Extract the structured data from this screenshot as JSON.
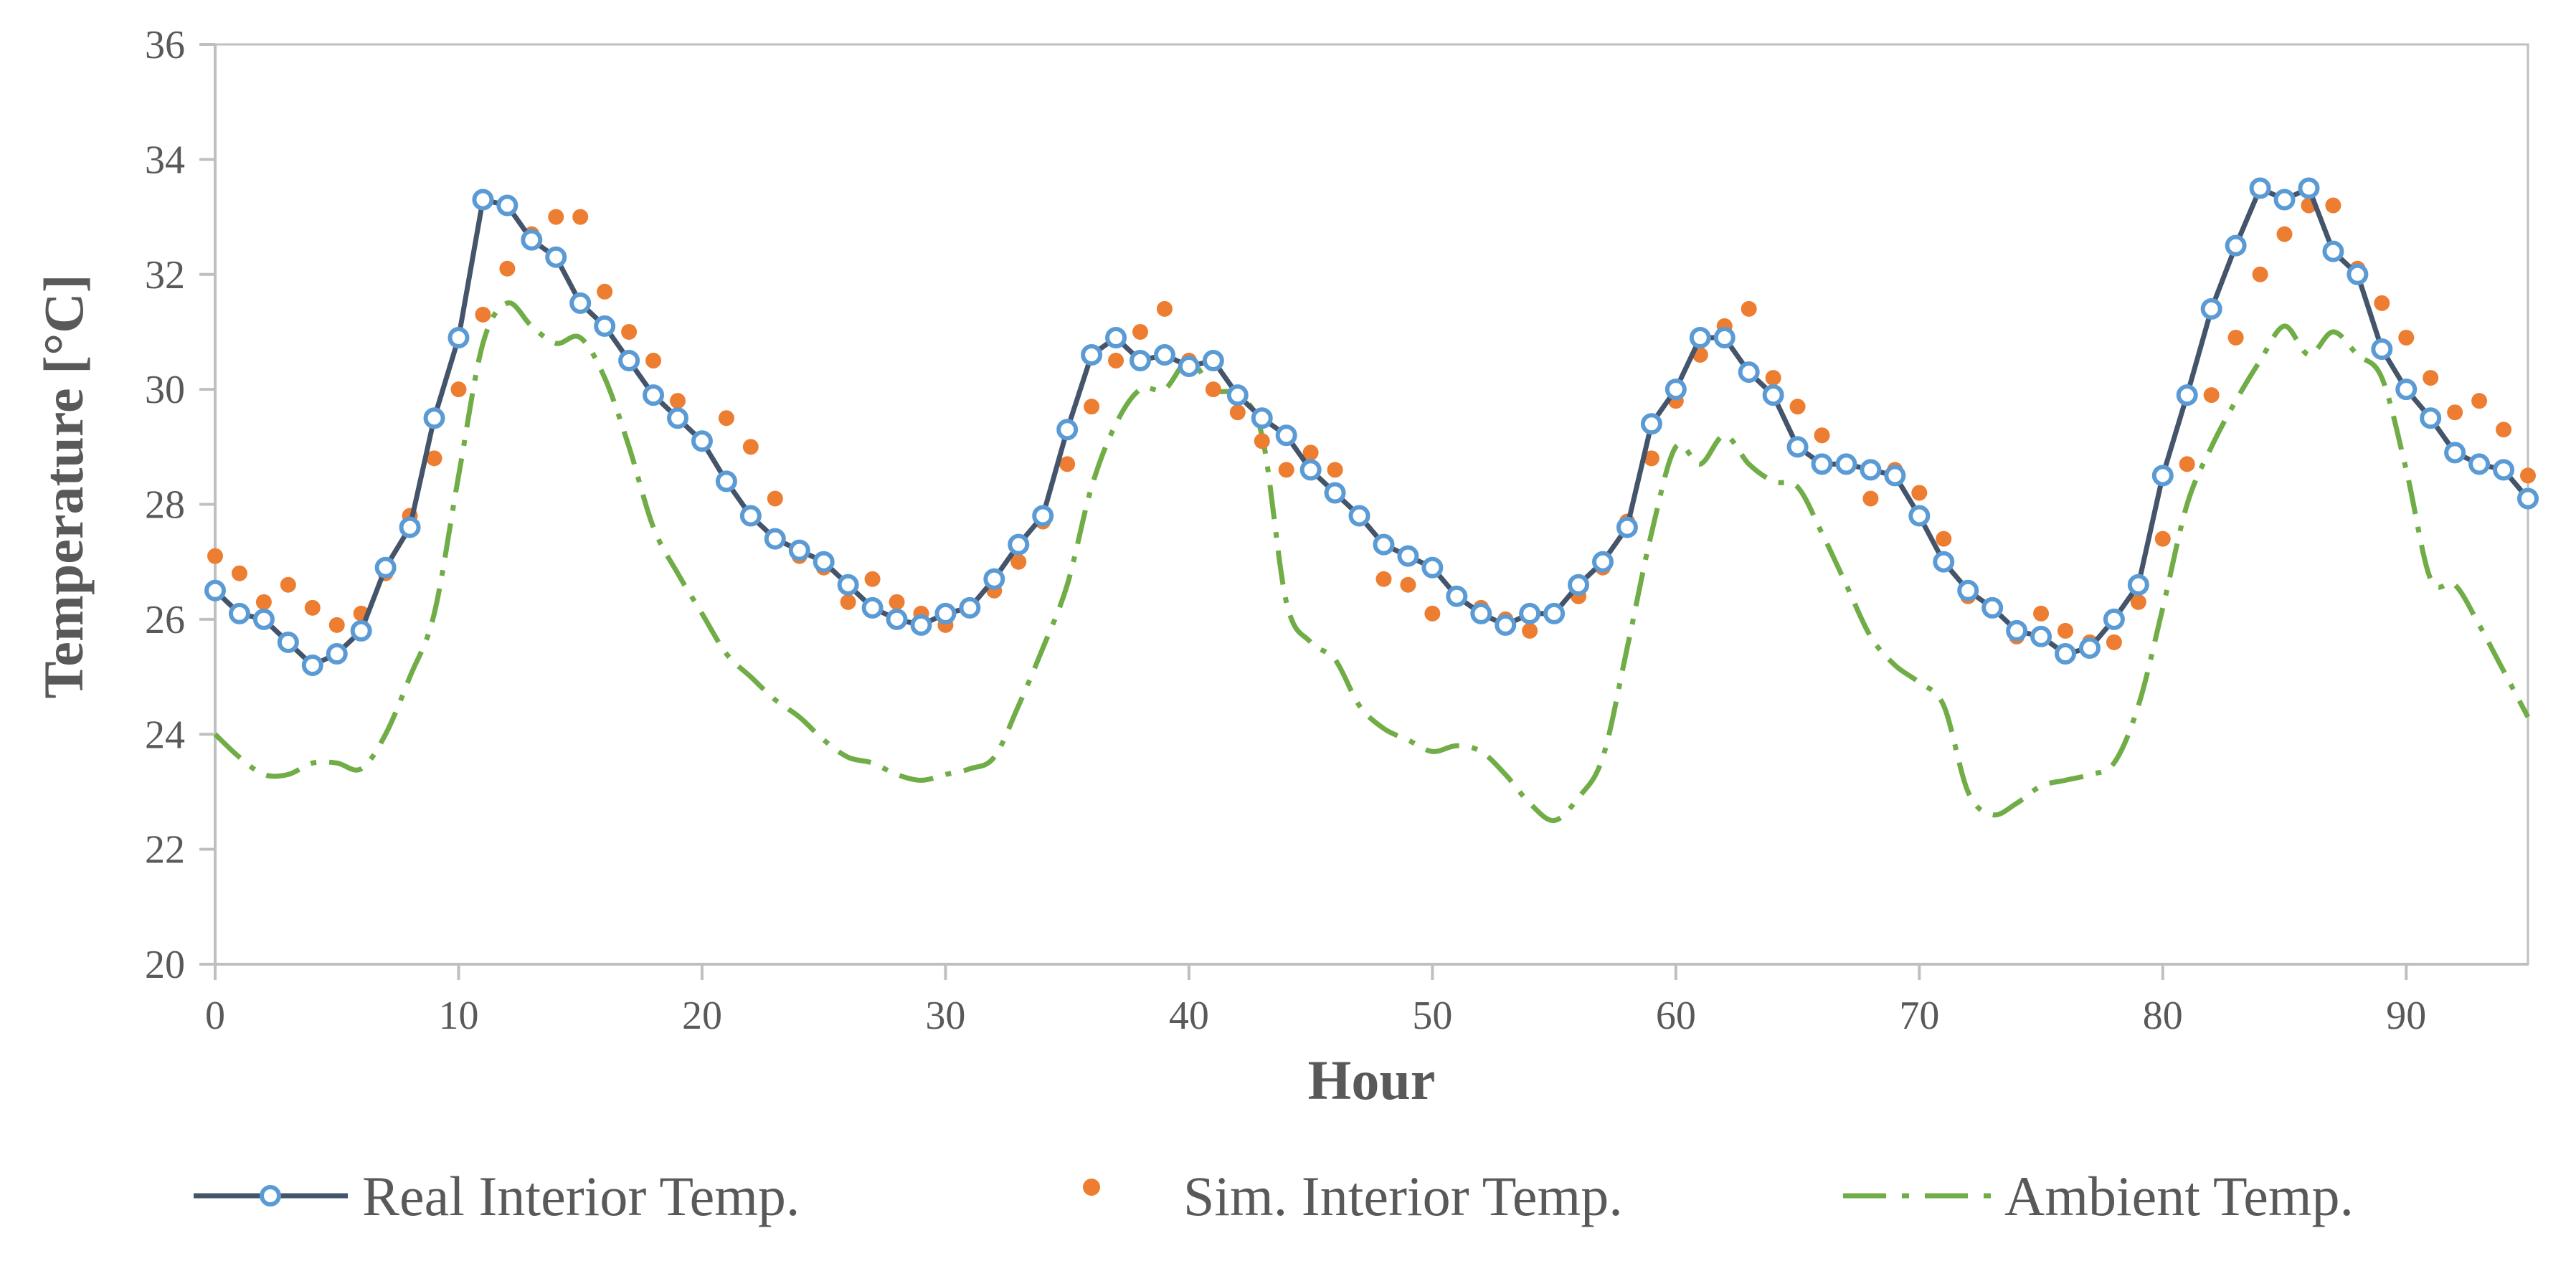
{
  "chart_data": {
    "type": "line",
    "title": "",
    "xlabel": "Hour",
    "ylabel": "Temperature [°C]",
    "xlim": [
      0,
      95
    ],
    "ylim": [
      20,
      36
    ],
    "xticks": [
      0,
      10,
      20,
      30,
      40,
      50,
      60,
      70,
      80,
      90
    ],
    "yticks": [
      20,
      22,
      24,
      26,
      28,
      30,
      32,
      34,
      36
    ],
    "grid": false,
    "legend_position": "bottom",
    "colors": {
      "real": "#44546A",
      "real_marker": "#5B9BD5",
      "sim": "#ED7D31",
      "ambient": "#70AD47",
      "axis": "#BFBFBF",
      "text": "#595959"
    },
    "series": [
      {
        "name": "Real Interior Temp.",
        "style": "line-marker",
        "values": [
          26.5,
          26.1,
          26.0,
          25.6,
          25.2,
          25.4,
          25.8,
          26.9,
          27.6,
          29.5,
          30.9,
          33.3,
          33.2,
          32.6,
          32.3,
          31.5,
          31.1,
          30.5,
          29.9,
          29.5,
          29.1,
          28.4,
          27.8,
          27.4,
          27.2,
          27.0,
          26.6,
          26.2,
          26.0,
          25.9,
          26.1,
          26.2,
          26.7,
          27.3,
          27.8,
          29.3,
          30.6,
          30.9,
          30.5,
          30.6,
          30.4,
          30.5,
          29.9,
          29.5,
          29.2,
          28.6,
          28.2,
          27.8,
          27.3,
          27.1,
          26.9,
          26.4,
          26.1,
          25.9,
          26.1,
          26.1,
          26.6,
          27.0,
          27.6,
          29.4,
          30.0,
          30.9,
          30.9,
          30.3,
          29.9,
          29.0,
          28.7,
          28.7,
          28.6,
          28.5,
          27.8,
          27.0,
          26.5,
          26.2,
          25.8,
          25.7,
          25.4,
          25.5,
          26.0,
          26.6,
          28.5,
          29.9,
          31.4,
          32.5,
          33.5,
          33.3,
          33.5,
          32.4,
          32.0,
          30.7,
          30.0,
          29.5,
          28.9,
          28.7,
          28.6,
          28.1
        ]
      },
      {
        "name": "Sim. Interior Temp.",
        "style": "markers",
        "values": [
          27.1,
          26.8,
          26.3,
          26.6,
          26.2,
          25.9,
          26.1,
          26.8,
          27.8,
          28.8,
          30.0,
          31.3,
          32.1,
          32.7,
          33.0,
          33.0,
          31.7,
          31.0,
          30.5,
          29.8,
          29.1,
          29.5,
          29.0,
          28.1,
          27.1,
          26.9,
          26.3,
          26.7,
          26.3,
          26.1,
          25.9,
          26.2,
          26.5,
          27.0,
          27.7,
          28.7,
          29.7,
          30.5,
          31.0,
          31.4,
          30.5,
          30.0,
          29.6,
          29.1,
          28.6,
          28.9,
          28.6,
          27.8,
          26.7,
          26.6,
          26.1,
          26.4,
          26.2,
          26.0,
          25.8,
          26.1,
          26.4,
          26.9,
          27.7,
          28.8,
          29.8,
          30.6,
          31.1,
          31.4,
          30.2,
          29.7,
          29.2,
          28.7,
          28.1,
          28.6,
          28.2,
          27.4,
          26.4,
          26.2,
          25.7,
          26.1,
          25.8,
          25.6,
          25.6,
          26.3,
          27.4,
          28.7,
          29.9,
          30.9,
          32.0,
          32.7,
          33.2,
          33.2,
          32.1,
          31.5,
          30.9,
          30.2,
          29.6,
          29.8,
          29.3,
          28.5
        ]
      },
      {
        "name": "Ambient Temp.",
        "style": "dash-dot",
        "values": [
          24.0,
          23.6,
          23.3,
          23.3,
          23.5,
          23.5,
          23.4,
          24.0,
          25.0,
          26.1,
          28.5,
          30.8,
          31.5,
          31.1,
          30.8,
          30.9,
          30.2,
          29.0,
          27.6,
          26.8,
          26.1,
          25.4,
          25.0,
          24.6,
          24.3,
          23.9,
          23.6,
          23.5,
          23.3,
          23.2,
          23.3,
          23.4,
          23.6,
          24.5,
          25.5,
          26.6,
          28.3,
          29.4,
          30.0,
          30.0,
          30.5,
          30.0,
          29.9,
          29.2,
          26.3,
          25.6,
          25.3,
          24.5,
          24.1,
          23.9,
          23.7,
          23.8,
          23.7,
          23.3,
          22.8,
          22.5,
          22.9,
          23.6,
          25.5,
          27.5,
          29.0,
          28.7,
          29.2,
          28.7,
          28.4,
          28.3,
          27.5,
          26.6,
          25.7,
          25.2,
          24.9,
          24.5,
          23.0,
          22.6,
          22.8,
          23.1,
          23.2,
          23.3,
          23.5,
          24.5,
          26.2,
          28.0,
          29.0,
          29.8,
          30.5,
          31.1,
          30.6,
          31.0,
          30.6,
          30.2,
          28.6,
          26.7,
          26.6,
          25.9,
          25.1,
          24.3
        ]
      }
    ]
  }
}
